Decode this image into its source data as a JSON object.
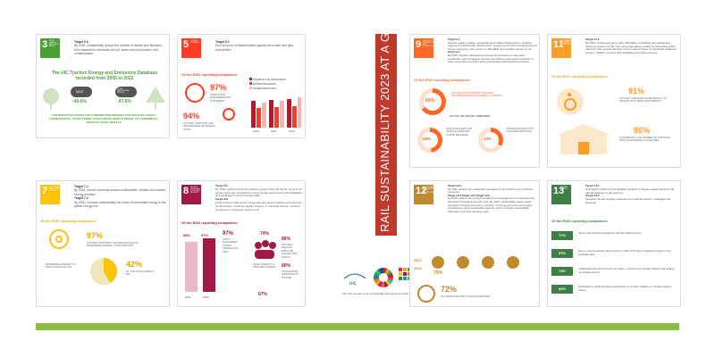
{
  "banner": {
    "title": "RAIL SUSTAINABILITY 2023 AT A GLANCE"
  },
  "footer": {
    "tagline": "The UIC support to the Sustainable Development Goals",
    "uic_logo": "uic"
  },
  "sdg3": {
    "number": "3",
    "title": "GOOD HEALTH AND WELL-BEING",
    "target_label": "Target 3.9",
    "target_text": "By 2030, substantially reduce the number of deaths and illnesses from hazardous chemicals and air, water and soil pollution and contamination.",
    "headline": "The UIC Traction Energy and Emissions Database recorded from 2005 to 2022",
    "no2_label": "NO2",
    "no2_value": "-45.6%",
    "pm_label": "TOTAL PARTICULATE MATTER",
    "pm_value": "-47.6%",
    "footnote": "THIS REDUCTION ACROSS THE COMBINED PERFORMANCE FOR 2022 IS RELATIVELY CONSEQUENTIAL, 110,000 TONNES HAVE ALREADY BEEN ACHIEVED, AS CONFIRMED BY PREVIOUS YEARS' RESULTS",
    "color": "#4c9f38"
  },
  "sdg5": {
    "number": "5",
    "title": "GENDER EQUALITY",
    "target_label": "Target 5.1",
    "target_text": "End all forms of discrimination against all women and girls everywhere.",
    "of_label": "Of the ESG reporting companies:",
    "pct1": "97%",
    "pct1_text": "HAVE A NON-DISCRIMINATION STATEMENT",
    "pct2": "94%",
    "pct2_text": "ACTIVELY MONITOR THE PERCENTAGE OF FEMALE STAFF",
    "legend": [
      "WOMEN IN THE WORKFORCE",
      "WOMEN MANAGERS",
      "WOMEN DIRECTORS"
    ],
    "years": [
      "2020",
      "2021",
      "2022"
    ],
    "color": "#ff3a21"
  },
  "sdg7": {
    "number": "7",
    "title": "AFFORDABLE AND CLEAN ENERGY",
    "target_label": "Target 7.1",
    "target_text": "By 2030, ensure universal access to affordable, reliable and modern energy services.",
    "target2_label": "Target 7.2",
    "target2_text": "By 2030, increase substantially the share of renewable energy in the global energy mix.",
    "of_label": "Of the ESG reporting companies:",
    "pct1": "97%",
    "pct1_text": "ACTIVELY MONITOR THE PERCENTAGE OF RENEWABLE ENERGY CONSUMPTION",
    "pct2": "42%",
    "pct2_text": "OF THE TOTAL ENERGY MIX",
    "pct3_text": "RENEWABLE ENERGY IN 2022 ACCOUNTS FOR",
    "color": "#fcc30b"
  },
  "sdg8": {
    "number": "8",
    "title": "DECENT WORK AND ECONOMIC GROWTH",
    "target_label": "Target 8.5",
    "target_text": "By 2030, achieve full and productive employment and decent work for all women and men, including for young people and persons with disabilities, and equal pay for work of equal value.",
    "target2_label": "Target 8.8",
    "target2_text": "Protect labour rights and promote safe and secure working environments for all workers, including migrant workers, in particular women migrants, and those in precarious employment.",
    "of_label": "Of the ESG reporting companies:",
    "bar1": "88%",
    "bar2": "97%",
    "years": [
      "2021",
      "2022"
    ],
    "pct_a": "97%",
    "pct_a_text": "HAVE A MANAGEMENT SYSTEM CERTIFIED ISO 45001",
    "pct_b": "74%",
    "pct_b_text": "HAVE A DIVERSITY & INCLUSION STRATEGY",
    "pct_c": "86%",
    "pct_c_text": "PROVIDE A REGULAR EMPLOYEE SATISFACTION SURVEY",
    "pct_d": "80%",
    "pct_d_text": "HAVE ADOPTED HUMAN RIGHTS POLICIES",
    "pct_e": "67%",
    "color": "#a21942"
  },
  "sdg9": {
    "number": "9",
    "title": "INDUSTRY, INNOVATION AND INFRASTRUCTURE",
    "target_label": "Target 9.1",
    "target_text": "Develop quality, reliable, sustainable and resilient infrastructure, including regional and transborder infrastructure, to support economic development and human well-being, with a focus on affordable and equitable access for all.",
    "target2_label": "Target 9.4",
    "target2_text": "By 2030, upgrade infrastructure and retrofit industries to make them sustainable, with increased resource-use efficiency and greater adoption of clean and environmentally sound technologies and industrial processes.",
    "of_label": "Of the ESG reporting companies:",
    "pct1": "65%",
    "pct1_text": "WHOSE PROCUREMENT POLICIES INCORPORATE SUSTAINABILITY CRITERIA",
    "pct2": "48%",
    "pct2_text": "HAVE TRAIN FLEETS AND ASSETS ALIGNED WITH CLIMATE RESILIENCE",
    "pct3": "33%",
    "pct3_text": "PRODUCE DESIGNS THAT CONSIDER ADAPTATION",
    "out_of": "OUT OF THE 60% OF COMPANIES",
    "color": "#fd6925"
  },
  "sdg11": {
    "number": "11",
    "title": "SUSTAINABLE CITIES AND COMMUNITIES",
    "target_label": "Target 11.2",
    "target_text": "By 2030, provide access to safe, affordable, accessible and sustainable transport systems for all, improving road safety, notably by expanding public transport, with special attention to the needs of those in vulnerable situations, women, children, persons with disabilities and older persons.",
    "of_label": "Of the ESG reporting companies:",
    "pct1": "91%",
    "pct1_text": "ACTIVELY MONITOR ACCESSIBILITY TO PEOPLE WITH REDUCED MOBILITY",
    "pct2": "86%",
    "pct2_text": "CAN REPORT THE NUMBER OF STATIONS WITH ACCESSIBILITY FACILITIES",
    "color": "#fd9d24"
  },
  "sdg12": {
    "number": "12",
    "title": "RESPONSIBLE CONSUMPTION AND PRODUCTION",
    "target_label": "Target 12.2",
    "target_text": "By 2030, achieve the sustainable management and efficient use of natural resources.",
    "target2_label": "Target 12.4",
    "target3_label": "Target 12.5",
    "target4_label": "Target 12.6",
    "target_more": "By 2020, achieve the environmentally sound management of chemicals and all wastes throughout their life cycle. By 2030, substantially reduce waste generation through prevention, reduction, recycling and reuse. Encourage companies to adopt sustainable practices and to integrate sustainability information into their reporting cycle.",
    "years": [
      "2017",
      "2022"
    ],
    "pct1": "75%",
    "pct2": "72%",
    "pct2_text": "OF WASTE WAS RECYCLED OR REUSED",
    "color": "#bf8b2e"
  },
  "sdg13": {
    "number": "13",
    "title": "CLIMATE ACTION",
    "target_label": "Target 13.1",
    "target_text": "Strengthen resilience and adaptive capacity to climate-related hazards and natural disasters in all countries.",
    "target2_label": "Target 13.2",
    "target2_text": "Integrate climate change measures into national policies, strategies and planning.",
    "of_label": "Of the ESG reporting companies:",
    "rows": [
      {
        "pct": "77%",
        "text": "have a board level oversight of climate-related issues"
      },
      {
        "pct": "57%",
        "text": "have a science-based target active in 2022 67% have integrated targets in the industrial plan"
      },
      {
        "pct": "73%",
        "text": "collaborate with governments on policy / solutions for climate change and scaling up climate actions"
      },
      {
        "pct": "66%",
        "text": "participate in public-private partnerships or another initiative on climate related issues"
      }
    ],
    "color": "#3f7e44"
  }
}
